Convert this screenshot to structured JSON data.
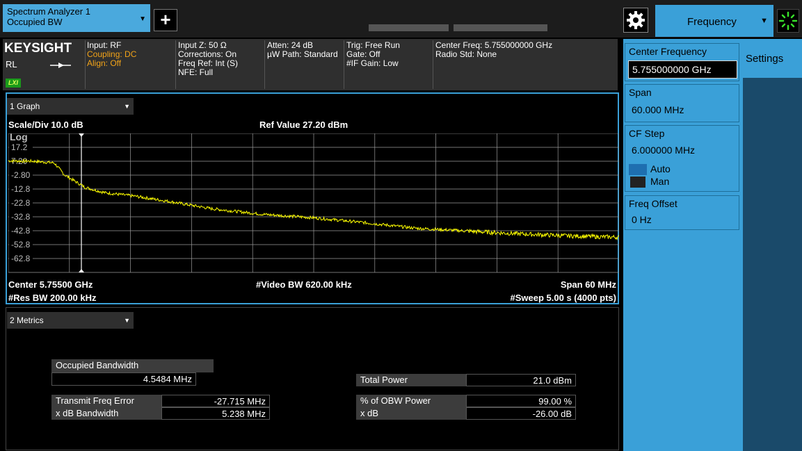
{
  "header": {
    "analyzer_name": "Spectrum Analyzer 1",
    "measurement": "Occupied BW",
    "menu_label": "Frequency"
  },
  "status": {
    "brand": "KEYSIGHT",
    "rl": "RL",
    "lxi": "LXI",
    "col1": [
      "Input: RF",
      "Coupling: DC",
      "Align: Off"
    ],
    "col2": [
      "Input Z: 50 Ω",
      "Corrections: On",
      "Freq Ref: Int (S)",
      "NFE: Full"
    ],
    "col3": [
      "Atten: 24 dB",
      "µW Path: Standard"
    ],
    "col4": [
      "Trig: Free Run",
      "Gate: Off",
      "#IF Gain: Low"
    ],
    "col5": [
      "Center Freq: 5.755000000 GHz",
      "Radio Std: None"
    ]
  },
  "graph": {
    "window_label": "1 Graph",
    "scale_div": "Scale/Div 10.0 dB",
    "ref_value": "Ref Value 27.20 dBm",
    "scale_type": "Log",
    "y_ticks": [
      "17.2",
      "7.20",
      "-2.80",
      "-12.8",
      "-22.8",
      "-32.8",
      "-42.8",
      "-52.8",
      "-62.8"
    ],
    "center": "Center 5.75500 GHz",
    "res_bw": "#Res BW 200.00 kHz",
    "video_bw": "#Video BW 620.00 kHz",
    "span": "Span 60 MHz",
    "sweep": "#Sweep 5.00 s  (4000 pts)",
    "trace_color": "#ffff00",
    "grid_color": "#9a9a9a"
  },
  "metrics": {
    "window_label": "2 Metrics",
    "occupied_bw_label": "Occupied Bandwidth",
    "occupied_bw_value": "4.5484 MHz",
    "transmit_freq_error_label": "Transmit Freq Error",
    "transmit_freq_error_value": "-27.715 MHz",
    "x_db_bandwidth_label": "x dB Bandwidth",
    "x_db_bandwidth_value": "5.238 MHz",
    "total_power_label": "Total Power",
    "total_power_value": "21.0 dBm",
    "obw_power_label": "% of OBW Power",
    "obw_power_value": "99.00 %",
    "x_db_label": "x dB",
    "x_db_value": "-26.00 dB"
  },
  "softkeys": {
    "center_frequency_label": "Center Frequency",
    "center_frequency_value": "5.755000000 GHz",
    "span_label": "Span",
    "span_value": "60.000 MHz",
    "cf_step_label": "CF Step",
    "cf_step_value": "6.000000 MHz",
    "auto_label": "Auto",
    "man_label": "Man",
    "freq_offset_label": "Freq Offset",
    "freq_offset_value": "0 Hz",
    "settings_tab": "Settings"
  },
  "chart_data": {
    "type": "line",
    "title": "",
    "xlabel": "",
    "ylabel": "",
    "xlim": [
      5.725,
      5.785
    ],
    "ylim": [
      -72.8,
      27.2
    ],
    "x_unit": "GHz",
    "y_unit": "dBm",
    "x": [
      5.725,
      5.7275,
      5.7295,
      5.7305,
      5.7325,
      5.7345,
      5.7375,
      5.741,
      5.745,
      5.75,
      5.755,
      5.76,
      5.765,
      5.77,
      5.775,
      5.78,
      5.785
    ],
    "values": [
      7.5,
      7.2,
      6.0,
      -2.5,
      -11.5,
      -15.5,
      -18.0,
      -22.0,
      -27.0,
      -31.0,
      -33.5,
      -37.0,
      -41.0,
      -43.0,
      -45.0,
      -46.5,
      -47.5
    ]
  }
}
